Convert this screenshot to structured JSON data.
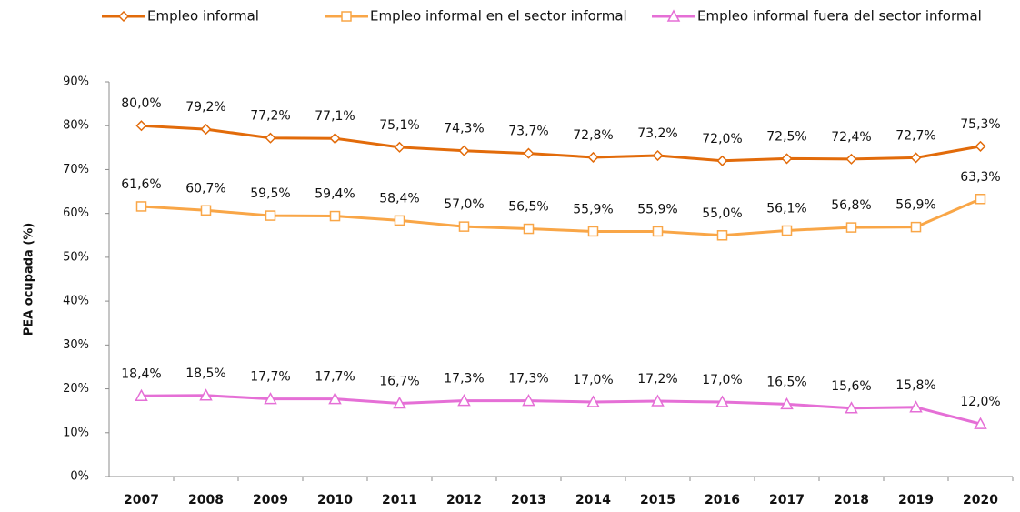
{
  "chart_data": {
    "type": "line",
    "y_label": "PEA ocupada (%)",
    "categories": [
      "2007",
      "2008",
      "2009",
      "2010",
      "2011",
      "2012",
      "2013",
      "2014",
      "2015",
      "2016",
      "2017",
      "2018",
      "2019",
      "2020"
    ],
    "series": [
      {
        "name": "Empleo informal",
        "color": "#e26b0a",
        "marker": "diamond",
        "values": [
          80.0,
          79.2,
          77.2,
          77.1,
          75.1,
          74.3,
          73.7,
          72.8,
          73.2,
          72.0,
          72.5,
          72.4,
          72.7,
          75.3
        ],
        "value_labels": [
          "80,0%",
          "79,2%",
          "77,2%",
          "77,1%",
          "75,1%",
          "74,3%",
          "73,7%",
          "72,8%",
          "73,2%",
          "72,0%",
          "72,5%",
          "72,4%",
          "72,7%",
          "75,3%"
        ]
      },
      {
        "name": "Empleo informal en el sector informal",
        "color": "#f9a647",
        "marker": "square",
        "values": [
          61.6,
          60.7,
          59.5,
          59.4,
          58.4,
          57.0,
          56.5,
          55.9,
          55.9,
          55.0,
          56.1,
          56.8,
          56.9,
          63.3
        ],
        "value_labels": [
          "61,6%",
          "60,7%",
          "59,5%",
          "59,4%",
          "58,4%",
          "57,0%",
          "56,5%",
          "55,9%",
          "55,9%",
          "55,0%",
          "56,1%",
          "56,8%",
          "56,9%",
          "63,3%"
        ]
      },
      {
        "name": "Empleo informal fuera del sector informal",
        "color": "#e56fd6",
        "marker": "triangle",
        "values": [
          18.4,
          18.5,
          17.7,
          17.7,
          16.7,
          17.3,
          17.3,
          17.0,
          17.2,
          17.0,
          16.5,
          15.6,
          15.8,
          12.0
        ],
        "value_labels": [
          "18,4%",
          "18,5%",
          "17,7%",
          "17,7%",
          "16,7%",
          "17,3%",
          "17,3%",
          "17,0%",
          "17,2%",
          "17,0%",
          "16,5%",
          "15,6%",
          "15,8%",
          "12,0%"
        ]
      }
    ],
    "ylim": [
      0,
      90
    ],
    "yticks": [
      {
        "value": 0,
        "label": "0%"
      },
      {
        "value": 10,
        "label": "10%"
      },
      {
        "value": 20,
        "label": "20%"
      },
      {
        "value": 30,
        "label": "30%"
      },
      {
        "value": 40,
        "label": "40%"
      },
      {
        "value": 50,
        "label": "50%"
      },
      {
        "value": 60,
        "label": "60%"
      },
      {
        "value": 70,
        "label": "70%"
      },
      {
        "value": 80,
        "label": "80%"
      },
      {
        "value": 90,
        "label": "90%"
      }
    ],
    "legend": "top"
  }
}
